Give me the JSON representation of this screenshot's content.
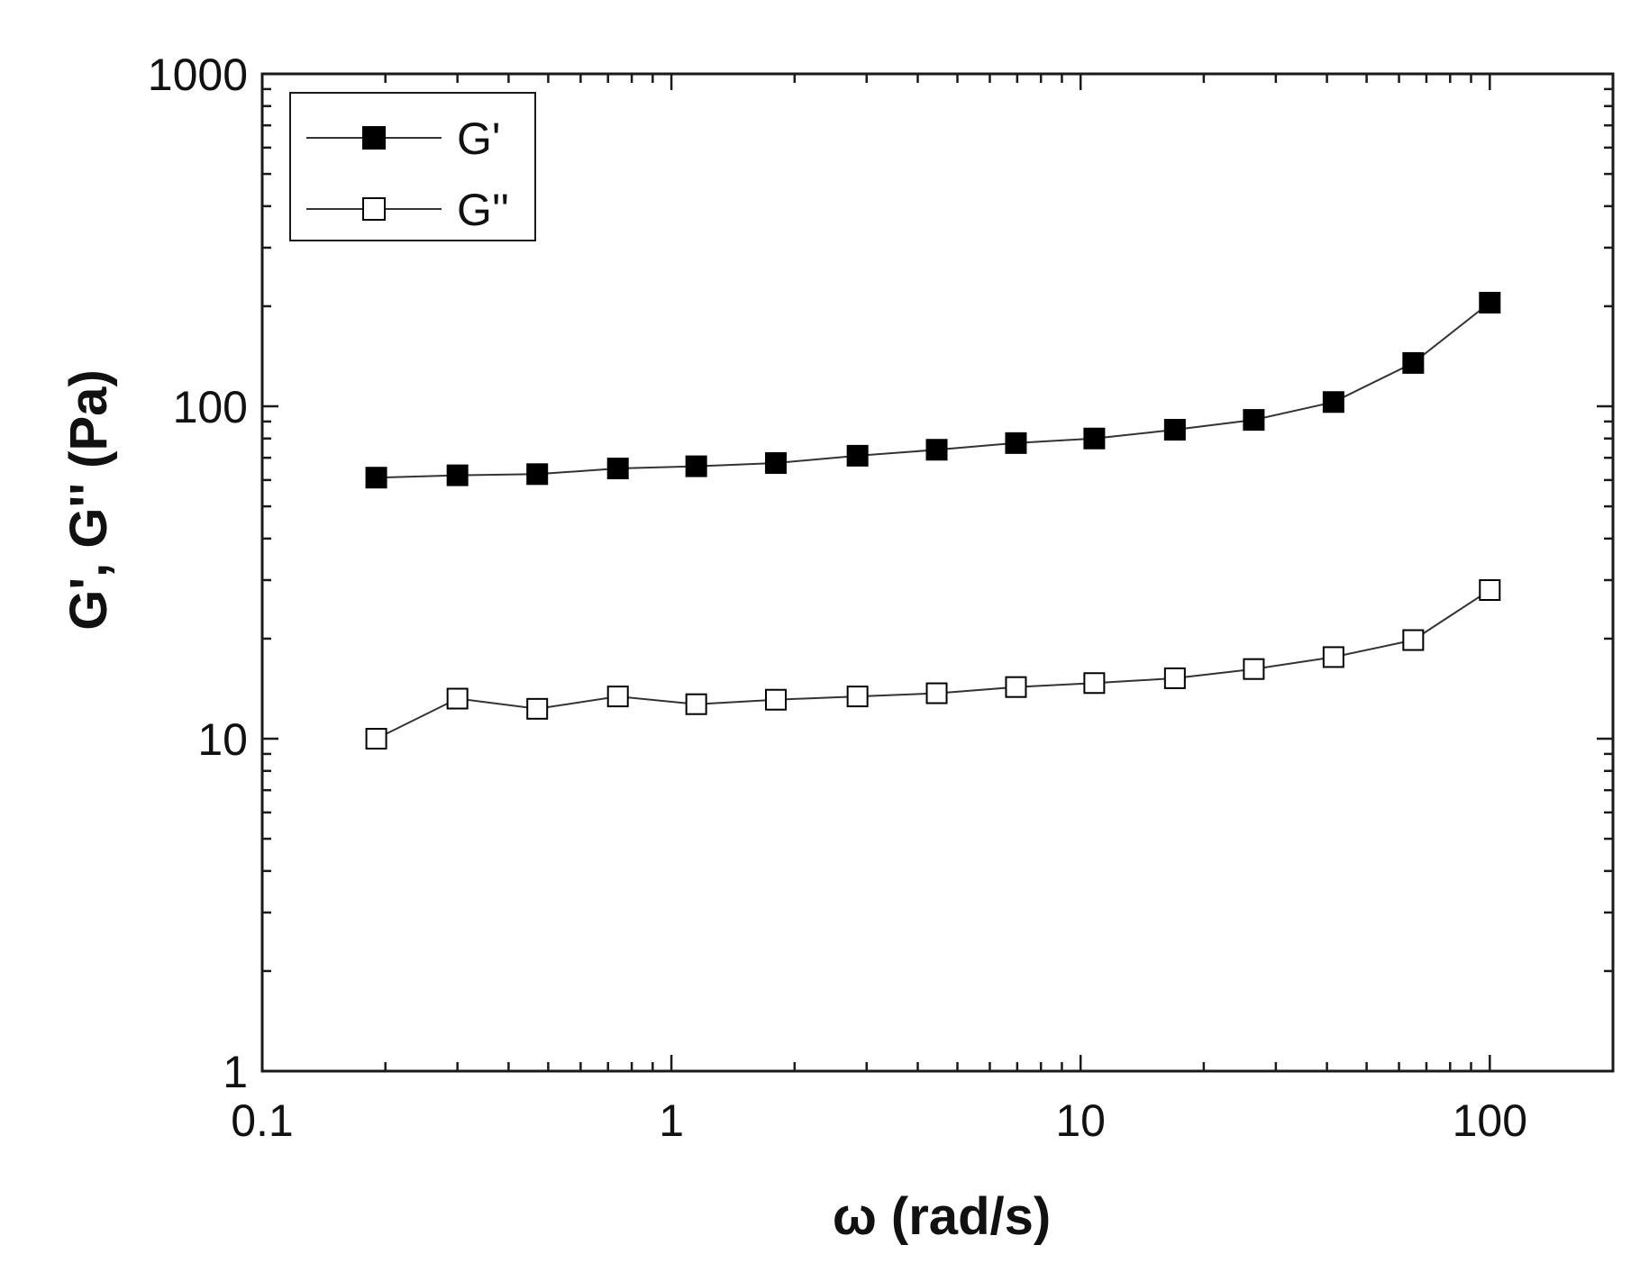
{
  "chart_data": {
    "type": "scatter",
    "xlabel": "ω (rad/s)",
    "ylabel": "G', G'' (Pa)",
    "xscale": "log",
    "yscale": "log",
    "xlim": [
      0.1,
      200
    ],
    "ylim": [
      1,
      1000
    ],
    "grid": false,
    "legend_position": "top-left",
    "x_ticks": [
      {
        "value": 0.1,
        "label": "0.1"
      },
      {
        "value": 1,
        "label": "1"
      },
      {
        "value": 10,
        "label": "10"
      },
      {
        "value": 100,
        "label": "100"
      }
    ],
    "y_ticks": [
      {
        "value": 1,
        "label": "1"
      },
      {
        "value": 10,
        "label": "10"
      },
      {
        "value": 100,
        "label": "100"
      },
      {
        "value": 1000,
        "label": "1000"
      }
    ],
    "x": [
      0.19,
      0.3,
      0.47,
      0.74,
      1.15,
      1.8,
      2.85,
      4.45,
      6.95,
      10.8,
      17,
      26.5,
      41.5,
      65,
      100
    ],
    "series": [
      {
        "name": "G'",
        "marker": "filled-square",
        "color": "#000000",
        "values": [
          61,
          62,
          62.5,
          65,
          66,
          67.5,
          71,
          74,
          77.5,
          80,
          85,
          91,
          103,
          135,
          205
        ]
      },
      {
        "name": "G''",
        "marker": "open-square",
        "color": "#000000",
        "values": [
          10,
          13.2,
          12.3,
          13.4,
          12.7,
          13.1,
          13.4,
          13.7,
          14.3,
          14.7,
          15.2,
          16.2,
          17.6,
          19.8,
          28
        ]
      }
    ]
  }
}
